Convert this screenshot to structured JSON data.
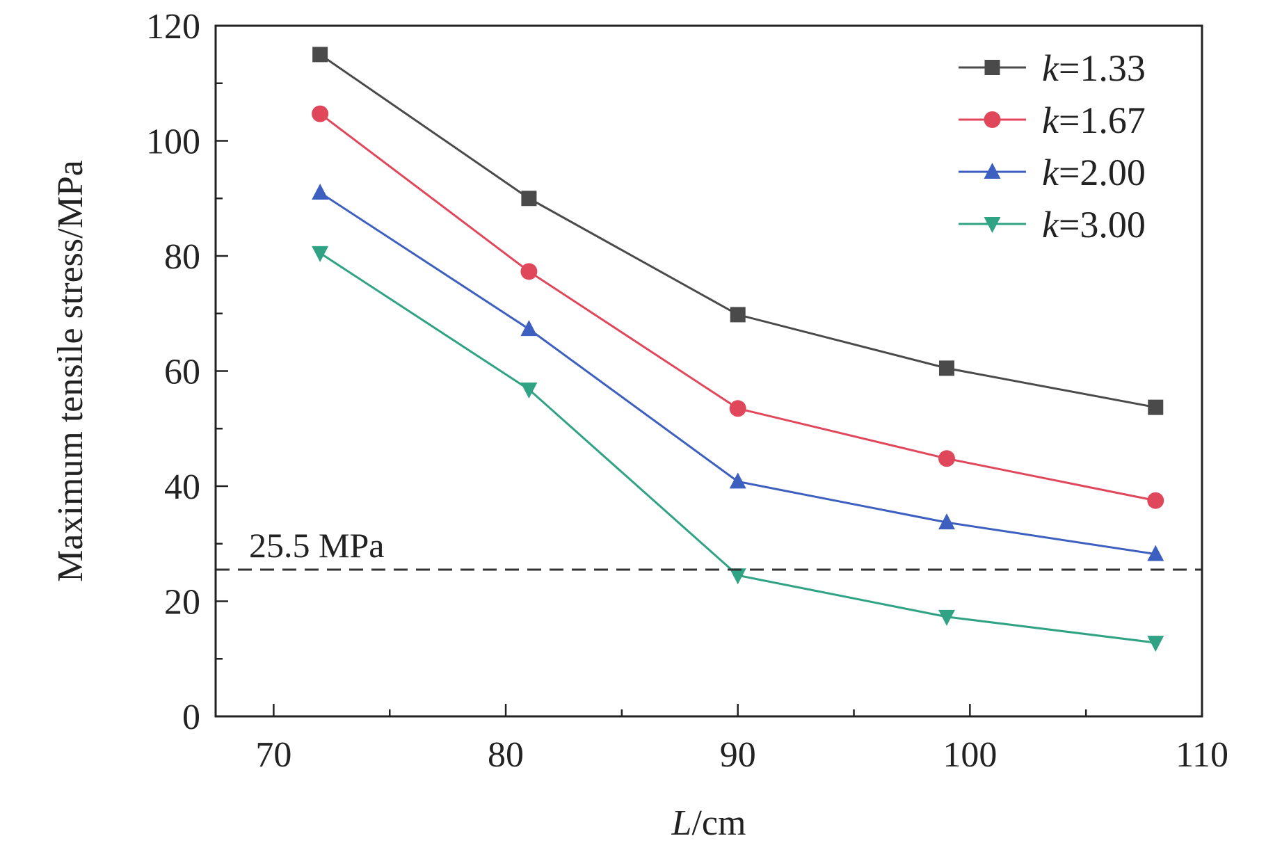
{
  "chart_data": {
    "type": "line",
    "title": "",
    "xlabel_italic": "L",
    "xlabel_unit": "/cm",
    "ylabel": "Maximum tensile stress/MPa",
    "xlim": [
      67.5,
      110
    ],
    "ylim": [
      0,
      120
    ],
    "x_ticks": [
      70,
      80,
      90,
      100,
      110
    ],
    "x_minor_ticks": [
      75,
      85,
      95,
      105
    ],
    "y_ticks": [
      0,
      20,
      40,
      60,
      80,
      100,
      120
    ],
    "y_minor_ticks": [
      10,
      30,
      50,
      70,
      90,
      110
    ],
    "x": [
      72,
      81,
      90,
      99,
      108
    ],
    "series": [
      {
        "k_symbol": "k",
        "name": "=1.33",
        "marker": "square",
        "color": "#4a4a4a",
        "values": [
          115,
          90,
          69.8,
          60.5,
          53.7
        ]
      },
      {
        "k_symbol": "k",
        "name": "=1.67",
        "marker": "circle",
        "color": "#e0475b",
        "values": [
          104.7,
          77.3,
          53.5,
          44.8,
          37.5
        ]
      },
      {
        "k_symbol": "k",
        "name": "=2.00",
        "marker": "triangle-up",
        "color": "#3d5fbf",
        "values": [
          91,
          67.3,
          40.8,
          33.7,
          28.2
        ]
      },
      {
        "k_symbol": "k",
        "name": "=3.00",
        "marker": "triangle-down",
        "color": "#2fa384",
        "values": [
          80.5,
          56.8,
          24.5,
          17.3,
          12.8
        ]
      }
    ],
    "reference_line": {
      "value": 25.5,
      "label": "25.5 MPa",
      "style": "dashed",
      "color": "#333333"
    },
    "legend_position": "top-right",
    "grid": false
  }
}
